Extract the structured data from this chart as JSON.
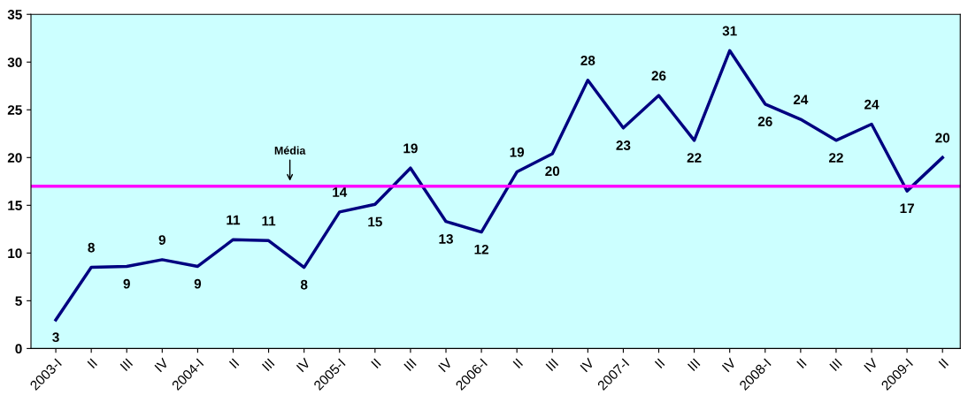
{
  "chart_data": {
    "type": "line",
    "categories": [
      "2003-I",
      "II",
      "III",
      "IV",
      "2004-I",
      "II",
      "III",
      "IV",
      "2005-I",
      "II",
      "III",
      "IV",
      "2006-I",
      "II",
      "III",
      "IV",
      "2007-I",
      "II",
      "III",
      "IV",
      "2008-I",
      "II",
      "III",
      "IV",
      "2009-I",
      "II"
    ],
    "series": [
      {
        "color": "#000080",
        "values": [
          3.0,
          8.5,
          8.6,
          9.3,
          8.6,
          11.4,
          11.3,
          8.5,
          14.3,
          15.1,
          18.9,
          13.3,
          12.2,
          18.5,
          20.4,
          28.1,
          23.1,
          26.5,
          21.8,
          31.2,
          25.6,
          24.0,
          21.8,
          23.5,
          16.5,
          20.0
        ],
        "value_labels": [
          "3",
          "8",
          "9",
          "9",
          "9",
          "11",
          "11",
          "8",
          "14",
          "15",
          "19",
          "13",
          "12",
          "19",
          "20",
          "28",
          "23",
          "26",
          "22",
          "31",
          "26",
          "24",
          "22",
          "24",
          "17",
          "20"
        ]
      }
    ],
    "ylim": [
      0,
      35
    ],
    "yticks": [
      0,
      5,
      10,
      15,
      20,
      25,
      30,
      35
    ],
    "ref_lines": [
      {
        "axis": "y",
        "value": 17,
        "label": "Média",
        "color": "#ff00ff"
      }
    ],
    "grid": false,
    "legend": false,
    "marker": "none",
    "line_style": "solid"
  }
}
